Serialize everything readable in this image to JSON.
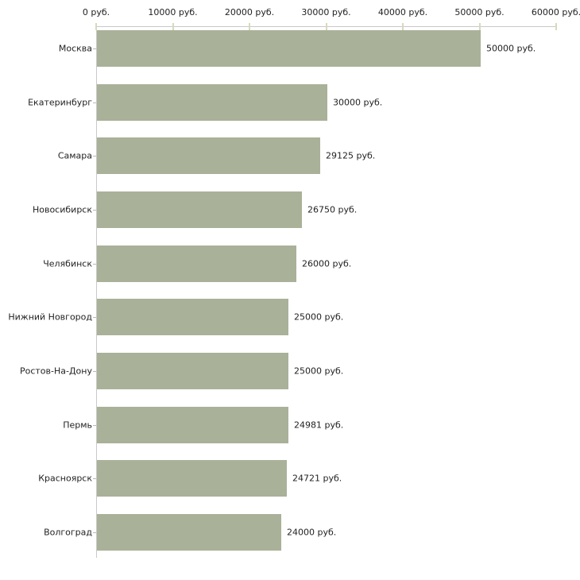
{
  "chart_data": {
    "type": "bar",
    "orientation": "horizontal",
    "title": "",
    "xlabel": "",
    "ylabel": "",
    "categories": [
      "Москва",
      "Екатеринбург",
      "Самара",
      "Новосибирск",
      "Челябинск",
      "Нижний Новгород",
      "Ростов-На-Дону",
      "Пермь",
      "Красноярск",
      "Волгоград"
    ],
    "values": [
      50000,
      30000,
      29125,
      26750,
      26000,
      25000,
      25000,
      24981,
      24721,
      24000
    ],
    "value_labels": [
      "50000 руб.",
      "30000 руб.",
      "29125 руб.",
      "26750 руб.",
      "26000 руб.",
      "25000 руб.",
      "25000 руб.",
      "24981 руб.",
      "24721 руб.",
      "24000 руб."
    ],
    "x_ticks": [
      0,
      10000,
      20000,
      30000,
      40000,
      50000,
      60000
    ],
    "x_tick_labels": [
      "0 руб.",
      "10000 руб.",
      "20000 руб.",
      "30000 руб.",
      "40000 руб.",
      "50000 руб.",
      "60000 руб."
    ],
    "xlim": [
      0,
      60000
    ],
    "grid": false,
    "legend": false,
    "colors": {
      "bar_fill": "#a9b199",
      "axis_line": "#c9c9c9",
      "x_tick_mark": "#d6dabc",
      "row_tick_mark": "#b8b8b8",
      "text": "#222222",
      "background": "#ffffff"
    }
  }
}
